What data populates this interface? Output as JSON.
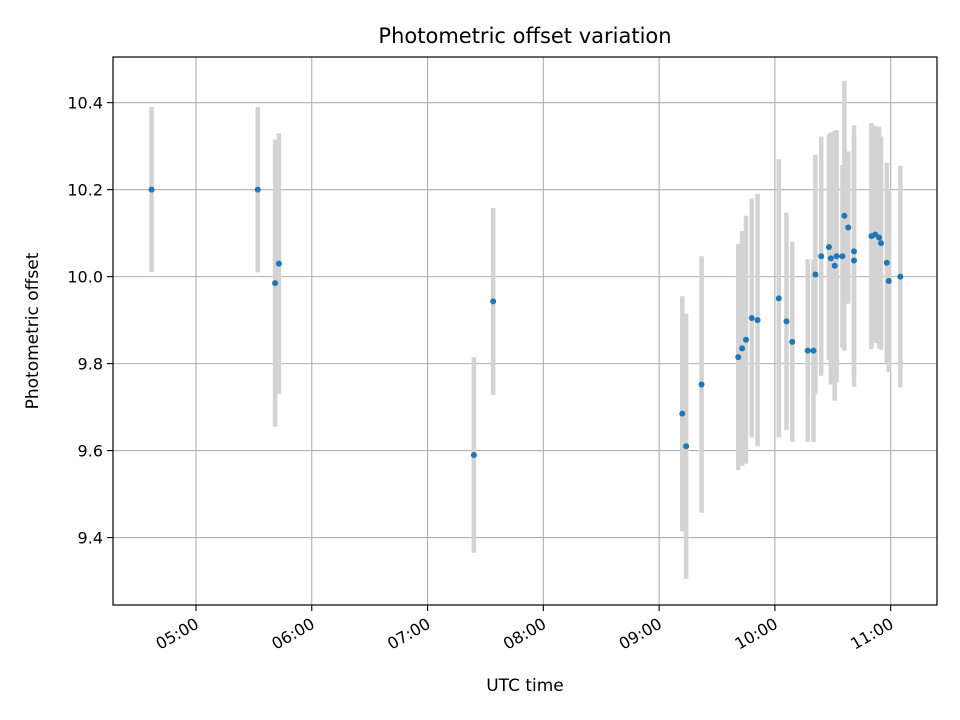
{
  "chart_data": {
    "type": "scatter",
    "title": "Photometric offset variation",
    "xlabel": "UTC time",
    "ylabel": "Photometric offset",
    "x_is_time": true,
    "xlim": [
      "04:17",
      "11:24"
    ],
    "ylim": [
      9.245,
      10.505
    ],
    "xticks": [
      "05:00",
      "06:00",
      "07:00",
      "08:00",
      "09:00",
      "10:00",
      "11:00"
    ],
    "yticks": [
      9.4,
      9.6,
      9.8,
      10.0,
      10.2,
      10.4
    ],
    "grid": true,
    "colors": {
      "point": "#1f77b4",
      "errorbar": "#d3d3d3",
      "grid": "#b0b0b0"
    },
    "points": [
      {
        "x": "04:37",
        "y": 10.2,
        "err": 0.19
      },
      {
        "x": "05:32",
        "y": 10.2,
        "err": 0.19
      },
      {
        "x": "05:41",
        "y": 9.985,
        "err": 0.33
      },
      {
        "x": "05:43",
        "y": 10.03,
        "err": 0.3
      },
      {
        "x": "07:24",
        "y": 9.59,
        "err": 0.225
      },
      {
        "x": "07:34",
        "y": 9.943,
        "err": 0.215
      },
      {
        "x": "09:12",
        "y": 9.685,
        "err": 0.27
      },
      {
        "x": "09:14",
        "y": 9.61,
        "err": 0.305
      },
      {
        "x": "09:22",
        "y": 9.752,
        "err": 0.295
      },
      {
        "x": "09:41",
        "y": 9.815,
        "err": 0.26
      },
      {
        "x": "09:43",
        "y": 9.835,
        "err": 0.27
      },
      {
        "x": "09:45",
        "y": 9.855,
        "err": 0.285
      },
      {
        "x": "09:48",
        "y": 9.905,
        "err": 0.275
      },
      {
        "x": "09:51",
        "y": 9.9,
        "err": 0.29
      },
      {
        "x": "10:02",
        "y": 9.95,
        "err": 0.32
      },
      {
        "x": "10:06",
        "y": 9.897,
        "err": 0.25
      },
      {
        "x": "10:09",
        "y": 9.85,
        "err": 0.23
      },
      {
        "x": "10:17",
        "y": 9.83,
        "err": 0.21
      },
      {
        "x": "10:20",
        "y": 9.83,
        "err": 0.21
      },
      {
        "x": "10:21",
        "y": 10.005,
        "err": 0.275
      },
      {
        "x": "10:24",
        "y": 10.047,
        "err": 0.275
      },
      {
        "x": "10:28",
        "y": 10.068,
        "err": 0.26
      },
      {
        "x": "10:29",
        "y": 10.042,
        "err": 0.29
      },
      {
        "x": "10:31",
        "y": 10.025,
        "err": 0.31
      },
      {
        "x": "10:32",
        "y": 10.047,
        "err": 0.29
      },
      {
        "x": "10:35",
        "y": 10.047,
        "err": 0.21
      },
      {
        "x": "10:36",
        "y": 10.14,
        "err": 0.31
      },
      {
        "x": "10:38",
        "y": 10.113,
        "err": 0.175
      },
      {
        "x": "10:41",
        "y": 10.037,
        "err": 0.29
      },
      {
        "x": "10:41",
        "y": 10.058,
        "err": 0.29
      },
      {
        "x": "10:50",
        "y": 10.093,
        "err": 0.26
      },
      {
        "x": "10:52",
        "y": 10.097,
        "err": 0.25
      },
      {
        "x": "10:54",
        "y": 10.09,
        "err": 0.255
      },
      {
        "x": "10:55",
        "y": 10.077,
        "err": 0.245
      },
      {
        "x": "10:58",
        "y": 10.032,
        "err": 0.23
      },
      {
        "x": "10:59",
        "y": 9.99,
        "err": 0.21
      },
      {
        "x": "11:05",
        "y": 10.0,
        "err": 0.255
      }
    ]
  }
}
